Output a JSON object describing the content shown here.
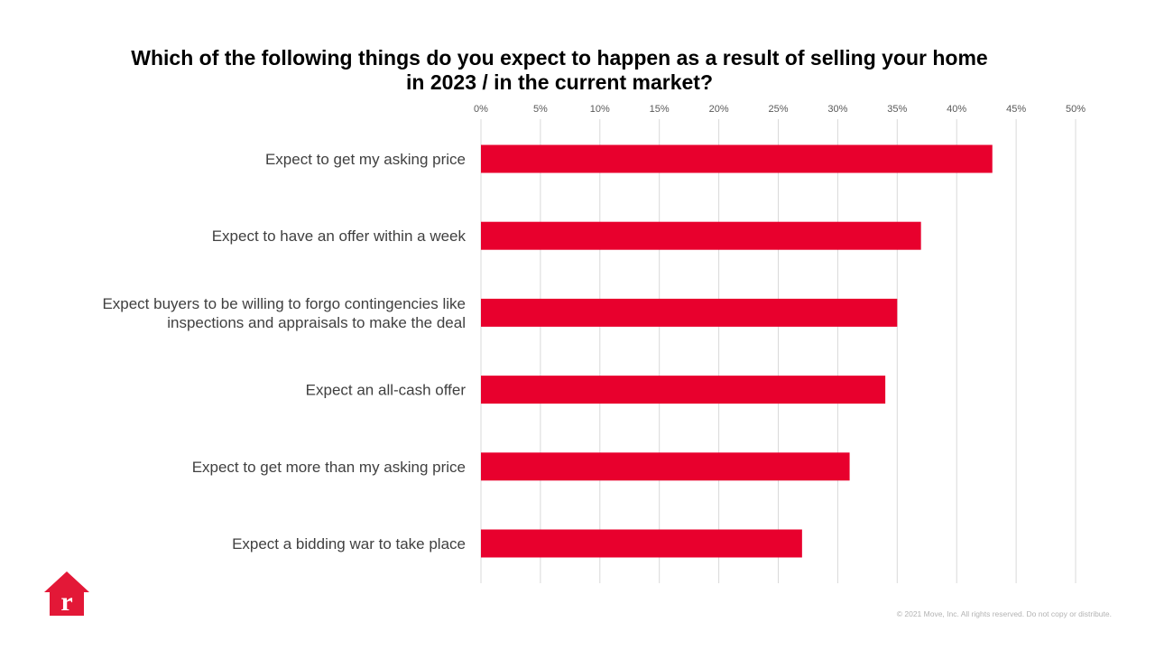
{
  "chart_data": {
    "type": "bar",
    "orientation": "horizontal",
    "title": "Which of the following things do you expect to happen as a result of selling your home in 2023 / in the current market?",
    "categories": [
      [
        "Expect to get my asking price"
      ],
      [
        "Expect to have an offer within a week"
      ],
      [
        "Expect buyers to be willing to forgo contingencies like",
        "inspections and appraisals to make the deal"
      ],
      [
        "Expect an all-cash offer"
      ],
      [
        "Expect to get more than my asking price"
      ],
      [
        "Expect a bidding war to take place"
      ]
    ],
    "values": [
      43,
      37,
      35,
      34,
      31,
      27
    ],
    "value_unit": "%",
    "xlim": [
      0,
      50
    ],
    "x_ticks": [
      "0%",
      "5%",
      "10%",
      "15%",
      "20%",
      "25%",
      "30%",
      "35%",
      "40%",
      "45%",
      "50%"
    ],
    "x_axis_position": "top",
    "grid": true,
    "legend": "none",
    "bar_color": "#e8002d"
  },
  "footer": {
    "copyright": "© 2021 Move, Inc. All rights reserved. Do not copy or distribute."
  },
  "logo": {
    "icon": "house-r-logo-icon",
    "letter": "r",
    "color": "#e31837"
  }
}
